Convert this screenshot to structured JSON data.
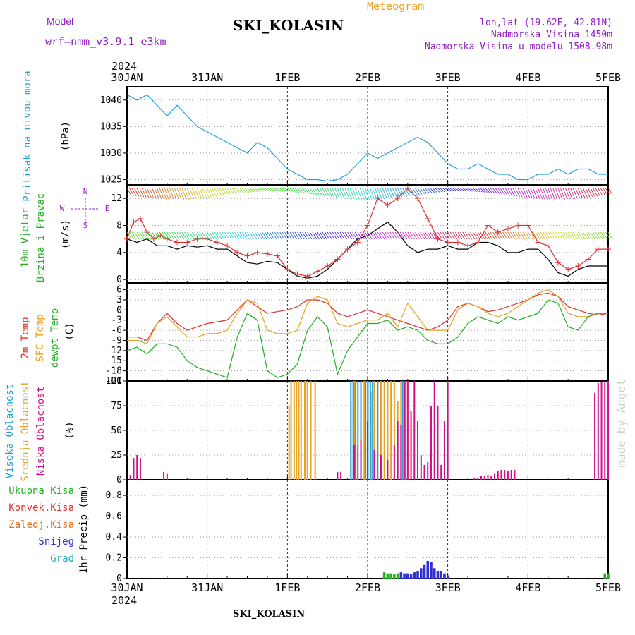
{
  "header": {
    "model_label": "Model",
    "model_name": "wrf—nmm_v3.9.1  e3km",
    "title": "SKI_KOLASIN",
    "product": "Meteogram",
    "coords": "lon,lat (19.62E, 42.81N)",
    "elevation": "Nadmorska Visina 1450m",
    "model_elevation": "Nadmorska Visina u modelu 1508.98m",
    "footer_station": "SKI_KOLASIN",
    "watermark": "made by Angel"
  },
  "time_axis": {
    "year": "2024",
    "ticks": [
      "30JAN",
      "31JAN",
      "1FEB",
      "2FEB",
      "3FEB",
      "4FEB",
      "5FEB"
    ],
    "unit": "hours from 30JAN 00UTC",
    "range": [
      0,
      144
    ]
  },
  "colors": {
    "pressure": "#1fa0e0",
    "wind_speed": "#000000",
    "wind_gust": "#e03030",
    "temp2m": "#e03030",
    "sfc_temp": "#e8a020",
    "dewpoint": "#20b020",
    "high_cloud": "#1fa0e0",
    "mid_cloud": "#e8a020",
    "low_cloud": "#d0108a",
    "total_precip": "#20b020",
    "conv_precip": "#e03030",
    "freezing_precip": "#e07020",
    "snow": "#3030d0",
    "hail": "#20b0b0",
    "purple_labels": "#9020c0"
  },
  "chart_data": [
    {
      "type": "line",
      "panel": "pressure",
      "ylabel_left": "Pritisak na nivou mora",
      "ylabel_unit": "(hPa)",
      "yticks": [
        1025,
        1030,
        1035,
        1040
      ],
      "ylim": [
        1024,
        1042.5
      ],
      "series": [
        {
          "name": "Pritisak na nivou mora",
          "x": [
            0,
            3,
            6,
            9,
            12,
            15,
            18,
            21,
            24,
            27,
            30,
            33,
            36,
            39,
            42,
            45,
            48,
            51,
            54,
            57,
            60,
            63,
            66,
            69,
            72,
            75,
            78,
            81,
            84,
            87,
            90,
            93,
            96,
            99,
            102,
            105,
            108,
            111,
            114,
            117,
            120,
            123,
            126,
            129,
            132,
            135,
            138,
            141,
            144
          ],
          "y": [
            1041,
            1040,
            1041,
            1039,
            1037,
            1039,
            1037,
            1035,
            1034,
            1033,
            1032,
            1031,
            1030,
            1032,
            1031,
            1029,
            1027,
            1026,
            1025,
            1025,
            1024.7,
            1025,
            1026,
            1028,
            1030,
            1029,
            1030,
            1031,
            1032,
            1033,
            1032,
            1030,
            1028,
            1027,
            1027,
            1028,
            1027,
            1026,
            1026,
            1025,
            1025,
            1026,
            1026,
            1027,
            1026,
            1027,
            1027,
            1026,
            1026
          ]
        }
      ]
    },
    {
      "type": "line",
      "panel": "wind",
      "ylabel_left": [
        "10m Vjetar",
        "Brzina i Pravac"
      ],
      "ylabel_unit": "(m/s)",
      "compass": {
        "n": "N",
        "s": "S",
        "e": "E",
        "w": "W"
      },
      "yticks": [
        0,
        4,
        8,
        12
      ],
      "ylim": [
        -0.5,
        14
      ],
      "series": [
        {
          "name": "wind speed",
          "x": [
            0,
            3,
            6,
            9,
            12,
            15,
            18,
            21,
            24,
            27,
            30,
            33,
            36,
            39,
            42,
            45,
            48,
            51,
            54,
            57,
            60,
            63,
            66,
            69,
            72,
            75,
            78,
            81,
            84,
            87,
            90,
            93,
            96,
            99,
            102,
            105,
            108,
            111,
            114,
            117,
            120,
            123,
            126,
            129,
            132,
            135,
            138,
            141,
            144
          ],
          "y": [
            6,
            5.5,
            6,
            5,
            5,
            4.5,
            5,
            4.8,
            5,
            4.5,
            4.5,
            3.5,
            2.5,
            2.3,
            2.7,
            2.5,
            1.5,
            0.5,
            0.2,
            0.5,
            1.5,
            3,
            4.5,
            6,
            6.5,
            7.5,
            8.5,
            7,
            5,
            4,
            4.5,
            4.5,
            5,
            4.5,
            4.5,
            5.5,
            5.5,
            5,
            4,
            4,
            4.5,
            4.5,
            3,
            1,
            0.5,
            1.5,
            2,
            2,
            2
          ]
        },
        {
          "name": "wind gust",
          "x": [
            0,
            2,
            4,
            6,
            8,
            10,
            12,
            15,
            18,
            21,
            24,
            27,
            30,
            33,
            36,
            39,
            42,
            45,
            48,
            51,
            54,
            57,
            60,
            63,
            66,
            69,
            72,
            75,
            78,
            81,
            84,
            87,
            90,
            93,
            96,
            99,
            102,
            105,
            108,
            111,
            114,
            117,
            120,
            123,
            126,
            129,
            132,
            135,
            138,
            141,
            144
          ],
          "y": [
            6,
            8.5,
            9,
            7,
            6,
            6.5,
            6,
            5.5,
            5.5,
            6,
            6,
            5.5,
            5,
            4,
            3.5,
            4,
            3.8,
            3.5,
            1.5,
            0.8,
            0.5,
            1.2,
            2,
            3,
            4.5,
            5.5,
            8,
            12,
            11,
            12,
            13.5,
            12,
            9,
            6,
            5.5,
            5.5,
            5,
            5.5,
            8,
            7,
            7.5,
            8,
            8,
            5.5,
            5,
            2.5,
            1.5,
            2,
            3,
            4.5,
            4.5
          ]
        }
      ]
    },
    {
      "type": "line",
      "panel": "temperature",
      "ylabel_left": [
        "2m Temp",
        "SFC Temp",
        "dewpt Temp"
      ],
      "ylabel_unit": "(C)",
      "yticks": [
        6,
        3,
        0,
        -3,
        -6,
        -9,
        -12,
        -15,
        -18,
        -21
      ],
      "ylim": [
        -21,
        8
      ],
      "series": [
        {
          "name": "2m Temp",
          "x": [
            0,
            3,
            6,
            9,
            12,
            15,
            18,
            21,
            24,
            27,
            30,
            33,
            36,
            39,
            42,
            45,
            48,
            51,
            54,
            57,
            60,
            63,
            66,
            69,
            72,
            75,
            78,
            81,
            84,
            87,
            90,
            93,
            96,
            99,
            102,
            105,
            108,
            111,
            114,
            117,
            120,
            123,
            126,
            129,
            132,
            135,
            138,
            141,
            144
          ],
          "y": [
            -8,
            -8,
            -9,
            -4,
            -1,
            -4,
            -6,
            -5,
            -4,
            -3.5,
            -3,
            0,
            3,
            1,
            -1,
            -0.5,
            0,
            1,
            3,
            3,
            2,
            -1,
            -2,
            -1,
            0,
            -1,
            -2,
            -3,
            -4,
            -5,
            -6,
            -5,
            -3,
            1,
            2,
            1,
            -0.5,
            0,
            1,
            2,
            3,
            4.5,
            5,
            4,
            1,
            0,
            -1,
            -1.5,
            -1
          ]
        },
        {
          "name": "SFC Temp",
          "x": [
            0,
            3,
            6,
            9,
            12,
            15,
            18,
            21,
            24,
            27,
            30,
            33,
            36,
            39,
            42,
            45,
            48,
            51,
            54,
            57,
            60,
            63,
            66,
            69,
            72,
            75,
            78,
            81,
            84,
            87,
            90,
            93,
            96,
            99,
            102,
            105,
            108,
            111,
            114,
            117,
            120,
            123,
            126,
            129,
            132,
            135,
            138,
            141,
            144
          ],
          "y": [
            -9,
            -9,
            -10,
            -4,
            -2,
            -5,
            -8,
            -8,
            -7,
            -7,
            -6,
            -1,
            3,
            2,
            -6,
            -7,
            -7,
            -6,
            2,
            4,
            3,
            -4,
            -5,
            -4,
            -3,
            -3,
            -1,
            -5,
            2,
            -2,
            -6,
            -6,
            -6,
            0,
            2,
            1,
            -1,
            -2,
            -1,
            1,
            3,
            5,
            6,
            4,
            -1,
            -2,
            -2,
            -1,
            -1
          ]
        },
        {
          "name": "dewpt Temp",
          "x": [
            0,
            3,
            6,
            9,
            12,
            15,
            18,
            21,
            24,
            27,
            30,
            33,
            36,
            39,
            42,
            45,
            48,
            51,
            54,
            57,
            60,
            63,
            66,
            69,
            72,
            75,
            78,
            81,
            84,
            87,
            90,
            93,
            96,
            99,
            102,
            105,
            108,
            111,
            114,
            117,
            120,
            123,
            126,
            129,
            132,
            135,
            138,
            141,
            144
          ],
          "y": [
            -12,
            -11,
            -13,
            -10,
            -10,
            -11,
            -15,
            -17,
            -18,
            -19,
            -20,
            -8,
            -1,
            -3,
            -18,
            -20,
            -19,
            -16,
            -6,
            -2,
            -5,
            -19,
            -12,
            -8,
            -4,
            -4,
            -3,
            -6,
            -5,
            -6,
            -9,
            -10,
            -10,
            -8,
            -4,
            -2,
            -3,
            -4,
            -2,
            -3,
            -2,
            -1,
            3,
            2,
            -5,
            -6,
            -2,
            -1,
            -1
          ]
        }
      ]
    },
    {
      "type": "bar",
      "panel": "cloud_cover",
      "ylabel_left": [
        "Visoka Oblacnost",
        "Srednja Oblacnost",
        "Niska Oblacnost"
      ],
      "ylabel_unit": "(%)",
      "yticks": [
        0,
        25,
        50,
        75,
        100
      ],
      "ylim": [
        0,
        100
      ],
      "series": [
        {
          "name": "Visoka Oblacnost",
          "x": [
            67,
            67.7,
            68.4,
            69.1,
            70,
            71.4,
            72.1,
            72.8,
            73.5,
            75,
            82.5,
            83.2
          ],
          "values": [
            100,
            100,
            100,
            100,
            100,
            100,
            100,
            100,
            100,
            100,
            100,
            100
          ]
        },
        {
          "name": "Srednja Oblacnost",
          "x": [
            48.5,
            49.1,
            50,
            50.7,
            51.4,
            52.1,
            53.2,
            54,
            55,
            56.3,
            67,
            68,
            69,
            70,
            71,
            72,
            73,
            74,
            75,
            76,
            77,
            78,
            79,
            80,
            81,
            82,
            83,
            84,
            85
          ],
          "values": [
            75,
            100,
            100,
            100,
            100,
            100,
            100,
            100,
            100,
            100,
            80,
            100,
            35,
            80,
            100,
            100,
            90,
            100,
            100,
            100,
            100,
            100,
            100,
            100,
            80,
            100,
            100,
            100,
            60
          ]
        },
        {
          "name": "Niska Oblacnost",
          "x": [
            1,
            2,
            3,
            4,
            11,
            12,
            63,
            64,
            68,
            70,
            72,
            74,
            76,
            78,
            80,
            81,
            82,
            83,
            84,
            85,
            86,
            87,
            88,
            89,
            90,
            91,
            92,
            93,
            94,
            95,
            96,
            104,
            105,
            106,
            107,
            108,
            109,
            110,
            111,
            112,
            113,
            114,
            115,
            116,
            140,
            141,
            142,
            143,
            144
          ],
          "values": [
            5,
            22,
            25,
            22,
            8,
            6,
            8,
            8,
            35,
            40,
            60,
            30,
            25,
            20,
            35,
            60,
            55,
            100,
            100,
            70,
            100,
            60,
            25,
            15,
            18,
            75,
            100,
            75,
            15,
            60,
            100,
            2,
            2,
            4,
            4,
            5,
            4,
            6,
            9,
            10,
            10,
            9,
            10,
            10,
            88,
            98,
            99,
            100,
            100
          ]
        }
      ]
    },
    {
      "type": "bar",
      "panel": "precipitation",
      "ylabel_left": [
        "Ukupna Kisa",
        "Konvek.Kisa",
        "Zaledj.Kisa",
        "Snijeg",
        "Grad"
      ],
      "ylabel_unit": "1hr Precip (mm)",
      "yticks": [
        0,
        0.2,
        0.4,
        0.6,
        0.8
      ],
      "ylim": [
        0,
        0.95
      ],
      "series": [
        {
          "name": "Ukupna Kisa",
          "x": [
            77,
            78,
            79,
            80,
            81,
            143,
            144
          ],
          "values": [
            0.06,
            0.05,
            0.05,
            0.04,
            0.05,
            0.05,
            0.05
          ]
        },
        {
          "name": "Snijeg",
          "x": [
            82,
            83,
            84,
            85,
            86,
            87,
            88,
            89,
            90,
            91,
            92,
            93,
            94,
            95,
            96
          ],
          "values": [
            0.06,
            0.05,
            0.05,
            0.04,
            0.06,
            0.07,
            0.1,
            0.13,
            0.17,
            0.16,
            0.1,
            0.07,
            0.07,
            0.05,
            0.03
          ]
        }
      ]
    }
  ]
}
